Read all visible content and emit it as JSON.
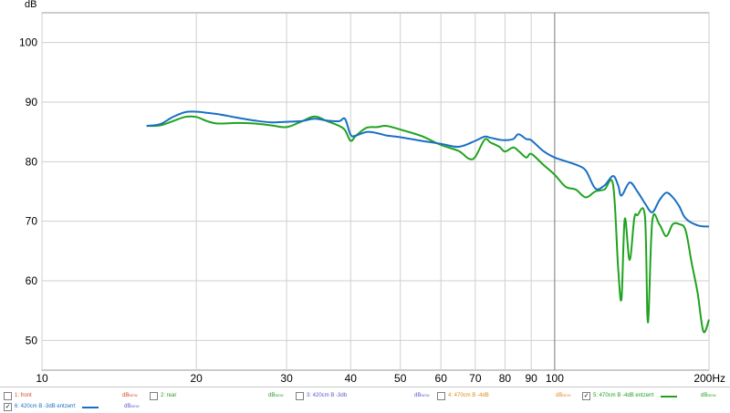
{
  "chart_data": {
    "type": "line",
    "ylabel": "dB",
    "x_unit": "Hz",
    "x_scale": "log",
    "xlim": [
      10,
      200
    ],
    "ylim": [
      45,
      105
    ],
    "grid": true,
    "x_ticks": [
      {
        "v": 10,
        "label": "10"
      },
      {
        "v": 20,
        "label": "20"
      },
      {
        "v": 30,
        "label": "30"
      },
      {
        "v": 40,
        "label": "40"
      },
      {
        "v": 50,
        "label": "50"
      },
      {
        "v": 60,
        "label": "60"
      },
      {
        "v": 70,
        "label": "70"
      },
      {
        "v": 80,
        "label": "80"
      },
      {
        "v": 90,
        "label": "90"
      },
      {
        "v": 100,
        "label": "100"
      },
      {
        "v": 200,
        "label": "200Hz"
      }
    ],
    "y_ticks": [
      50,
      60,
      70,
      80,
      90,
      100
    ],
    "series": [
      {
        "name": "6: 420cm B -3dB entzerrt",
        "color": "#1a6fc4",
        "x": [
          16,
          17,
          18,
          19,
          20,
          21,
          22,
          24,
          26,
          28,
          30,
          32,
          34,
          36,
          38,
          39,
          40,
          41,
          43,
          45,
          47,
          50,
          55,
          60,
          65,
          70,
          73,
          75,
          78,
          80,
          83,
          85,
          88,
          90,
          95,
          100,
          110,
          115,
          120,
          125,
          130,
          133,
          135,
          140,
          145,
          150,
          155,
          160,
          165,
          170,
          175,
          180,
          190,
          200
        ],
        "y": [
          86.0,
          86.3,
          87.5,
          88.3,
          88.4,
          88.2,
          88.0,
          87.4,
          86.9,
          86.6,
          86.7,
          86.8,
          87.2,
          86.9,
          86.8,
          87.2,
          84.5,
          84.4,
          85.0,
          84.8,
          84.4,
          84.1,
          83.5,
          83.0,
          82.5,
          83.5,
          84.2,
          84.0,
          83.7,
          83.6,
          83.8,
          84.6,
          83.8,
          83.6,
          81.8,
          80.7,
          79.5,
          78.5,
          75.5,
          76.0,
          77.6,
          76.0,
          74.3,
          76.5,
          75.0,
          73.0,
          71.5,
          73.5,
          74.8,
          74.0,
          72.5,
          70.5,
          69.3,
          69.1
        ]
      },
      {
        "name": "5: 470cm B -4dB entzerrt",
        "color": "#1fa31f",
        "x": [
          16,
          17,
          18,
          19,
          20,
          21,
          22,
          24,
          26,
          28,
          30,
          32,
          34,
          36,
          38,
          39,
          40,
          41,
          43,
          45,
          47,
          50,
          55,
          60,
          65,
          68,
          70,
          73,
          75,
          78,
          80,
          83,
          85,
          88,
          90,
          95,
          100,
          105,
          110,
          115,
          120,
          125,
          130,
          133,
          135,
          137,
          140,
          143,
          145,
          150,
          152,
          155,
          160,
          165,
          170,
          175,
          180,
          185,
          190,
          195,
          200
        ],
        "y": [
          86.0,
          86.1,
          86.8,
          87.5,
          87.5,
          86.8,
          86.4,
          86.5,
          86.4,
          86.1,
          85.8,
          86.7,
          87.6,
          86.8,
          86.0,
          85.3,
          83.5,
          84.4,
          85.7,
          85.8,
          86.0,
          85.4,
          84.3,
          82.8,
          81.8,
          80.5,
          80.8,
          83.7,
          83.2,
          82.5,
          81.7,
          82.4,
          81.8,
          80.7,
          81.3,
          79.5,
          77.8,
          75.8,
          75.3,
          74.0,
          75.0,
          75.3,
          76.1,
          62.0,
          57.0,
          70.4,
          63.5,
          70.5,
          71.0,
          70.8,
          53.0,
          70.0,
          69.5,
          67.5,
          69.5,
          69.5,
          68.5,
          63.0,
          58.0,
          51.5,
          53.5
        ]
      }
    ],
    "legend": [
      {
        "label": "1: front",
        "checked": false,
        "color": "#d04a2a",
        "unit_color": "#d04a2a",
        "swatch": false
      },
      {
        "label": "2: rear",
        "checked": false,
        "color": "#2a9a2a",
        "unit_color": "#2a9a2a",
        "swatch": false
      },
      {
        "label": "3: 420cm B -3db",
        "checked": false,
        "color": "#5a5ad0",
        "unit_color": "#5a5ad0",
        "swatch": false
      },
      {
        "label": "4: 470cm B -4dB",
        "checked": false,
        "color": "#e08a1e",
        "unit_color": "#e08a1e",
        "swatch": false
      },
      {
        "label": "5: 470cm B -4dB entzerrt",
        "checked": true,
        "color": "#1fa31f",
        "unit_color": "#1fa31f",
        "swatch": true
      },
      {
        "label": "6: 420cm B -3dB entzerrt",
        "checked": true,
        "color": "#1a6fc4",
        "unit_color": "#5a5ad0",
        "swatch": true
      }
    ],
    "legend_unit": "dB",
    "legend_unit_sup": "NEW"
  }
}
